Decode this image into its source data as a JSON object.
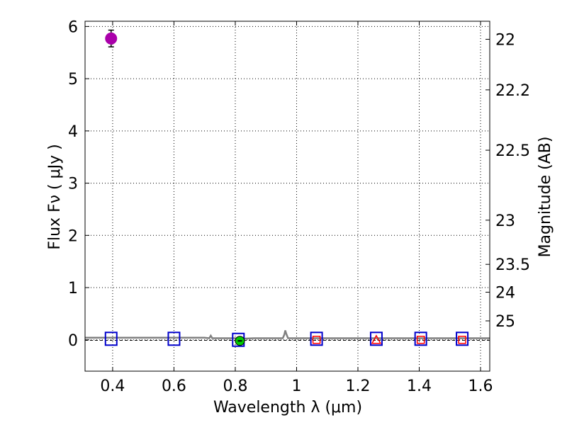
{
  "chart_data": {
    "type": "scatter",
    "title": "",
    "xlabel": "Wavelength  λ (μm)",
    "ylabel": "Flux  Fν  ( μJy )",
    "y2label": "Magnitude (AB)",
    "xlim": [
      0.31,
      1.63
    ],
    "ylim": [
      -0.6,
      6.1
    ],
    "grid": true,
    "x_ticks": [
      0.4,
      0.6,
      0.8,
      1.0,
      1.2,
      1.4,
      1.6
    ],
    "x_tick_labels": [
      "0.4",
      "0.6",
      "0.8",
      "1",
      "1.2",
      "1.4",
      "1.6"
    ],
    "y_ticks": [
      0,
      1,
      2,
      3,
      4,
      5,
      6
    ],
    "y_tick_labels": [
      "0",
      "1",
      "2",
      "3",
      "4",
      "5",
      "6"
    ],
    "mag_ticks": [
      {
        "label": "22",
        "mag": 22.0
      },
      {
        "label": "22.2",
        "mag": 22.2
      },
      {
        "label": "22.5",
        "mag": 22.5
      },
      {
        "label": "23",
        "mag": 23.0
      },
      {
        "label": "23.5",
        "mag": 23.5
      },
      {
        "label": "24",
        "mag": 24.0
      },
      {
        "label": "25",
        "mag": 25.0
      }
    ],
    "detection": {
      "name": "detected-flux",
      "x": 0.395,
      "y": 5.77,
      "yerr": 0.16,
      "color": "#aa00aa"
    },
    "model_boxes": {
      "name": "model-photometry",
      "color": "#0000cc",
      "x": [
        0.395,
        0.6,
        0.81,
        1.065,
        1.26,
        1.405,
        1.54
      ],
      "y": [
        0.02,
        0.02,
        0.0,
        0.02,
        0.02,
        0.02,
        0.02
      ]
    },
    "observed_points": {
      "name": "observed-flux",
      "color": "#ff0000",
      "x": [
        1.065,
        1.405,
        1.54
      ],
      "y": [
        0.0,
        0.0,
        0.0
      ]
    },
    "observed_triangle": {
      "name": "observed-flux-triangle",
      "x": 1.26,
      "y": 0.0,
      "color": "#ff0000"
    },
    "green_point": {
      "name": "detected-flux-green",
      "x": 0.815,
      "y": -0.02,
      "color": "#00cc00"
    },
    "spectrum": {
      "name": "model-spectrum",
      "color": "#808080",
      "x": [
        0.31,
        0.5,
        0.7,
        0.715,
        0.72,
        0.725,
        0.74,
        0.8,
        0.82,
        0.86,
        0.9,
        0.955,
        0.96,
        0.963,
        0.966,
        0.972,
        1.0,
        1.2,
        1.4,
        1.63
      ],
      "y": [
        0.04,
        0.04,
        0.04,
        0.03,
        0.08,
        0.03,
        0.03,
        0.03,
        0.02,
        0.03,
        0.03,
        0.03,
        0.1,
        0.18,
        0.12,
        0.03,
        0.03,
        0.03,
        0.03,
        0.03
      ]
    },
    "zero_line": {
      "name": "zero-flux-line",
      "y": -0.01,
      "color": "#000000"
    }
  }
}
